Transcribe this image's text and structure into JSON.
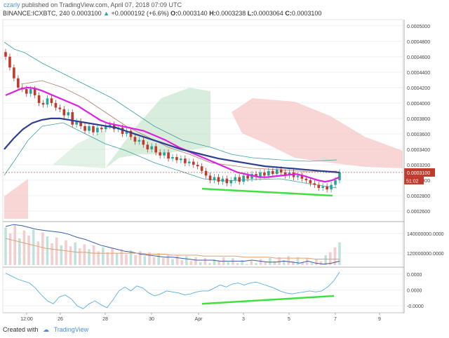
{
  "header": {
    "author": "czarly",
    "published_text": "published on TradingView.com, April 07, 2018 07:09 UTC",
    "symbol": "BINANCE:ICXBTC, 240",
    "last": "0.0003100",
    "change": "+0.0000192 (+6.6%)",
    "o_label": "O:",
    "o": "0.0003140",
    "h_label": "H:",
    "h": "0.0003238",
    "l_label": "L:",
    "l": "0.0003064",
    "c_label": "C:",
    "c": "0.0003100"
  },
  "footer": {
    "created_with": "Created with",
    "brand": "TradingView"
  },
  "colors": {
    "ma_fast": "#e020e0",
    "ma_slow": "#2c3e90",
    "trendline": "#40e040",
    "cloud_bull": "#b9dfc0",
    "cloud_bear": "#f7c5c5",
    "candle_up": "#26a69a",
    "candle_down": "#c0392b"
  },
  "chart_data": [
    {
      "type": "candlestick",
      "title": "BINANCE:ICXBTC, 240",
      "x_ticks": [
        "12:00",
        "26",
        "28",
        "30",
        "Apr",
        "3",
        "5",
        "7",
        "9"
      ],
      "y_ticks": [
        "0.0002600",
        "0.0002800",
        "0.0003000",
        "0.0003200",
        "0.0003400",
        "0.0003600",
        "0.0003800",
        "0.0004000",
        "0.0004200",
        "0.0004400",
        "0.0004600",
        "0.0004800",
        "0.0005000"
      ],
      "ylim": [
        0.00025,
        0.000508
      ],
      "price_label": "0.0003100",
      "countdown_label": "51:02",
      "close": [
        0.00046,
        0.000446,
        0.000432,
        0.00042,
        0.000418,
        0.000412,
        0.000418,
        0.00041,
        0.0004,
        0.000398,
        0.000406,
        0.0004,
        0.000394,
        0.000392,
        0.000384,
        0.000388,
        0.000372,
        0.000376,
        0.00037,
        0.000364,
        0.00037,
        0.000362,
        0.000368,
        0.000366,
        0.00037,
        0.000372,
        0.000366,
        0.000368,
        0.00036,
        0.000364,
        0.000356,
        0.00035,
        0.000352,
        0.000346,
        0.00034,
        0.000344,
        0.000336,
        0.000332,
        0.000336,
        0.000328,
        0.00033,
        0.000326,
        0.000328,
        0.000322,
        0.000324,
        0.00032,
        0.000318,
        0.000312,
        0.000306,
        0.0003,
        0.000304,
        0.000298,
        0.000302,
        0.000296,
        0.0003,
        0.000304,
        0.000298,
        0.000306,
        0.000302,
        0.000308,
        0.000304,
        0.00031,
        0.000306,
        0.000312,
        0.000308,
        0.000314,
        0.00031,
        0.000306,
        0.00031,
        0.000304,
        0.000306,
        0.000302,
        0.0003,
        0.000296,
        0.000294,
        0.00029,
        0.000292,
        0.000288,
        0.000294,
        0.0003,
        0.00031
      ],
      "ma_fast": [
        0.00041,
        0.000414,
        0.000418,
        0.00042,
        0.000419,
        0.000416,
        0.000412,
        0.000408,
        0.000404,
        0.0004,
        0.000396,
        0.00039,
        0.000384,
        0.000378,
        0.000374,
        0.000372,
        0.00037,
        0.000368,
        0.000366,
        0.000364,
        0.00036,
        0.000356,
        0.000352,
        0.000347,
        0.000342,
        0.000338,
        0.000334,
        0.00033,
        0.000326,
        0.000322,
        0.000318,
        0.000314,
        0.00031,
        0.000308,
        0.000306,
        0.000304,
        0.000304,
        0.000305,
        0.000306,
        0.000307,
        0.000308,
        0.000306,
        0.000303,
        0.0003,
        0.000298,
        0.0003,
        0.000304
      ],
      "ma_slow": [
        0.00034,
        0.000354,
        0.000366,
        0.000374,
        0.000378,
        0.00038,
        0.00038,
        0.000378,
        0.000376,
        0.000374,
        0.000372,
        0.00037,
        0.000368,
        0.000364,
        0.00036,
        0.000356,
        0.000352,
        0.000348,
        0.000344,
        0.00034,
        0.000337,
        0.000334,
        0.000331,
        0.000328,
        0.000326,
        0.000324,
        0.000322,
        0.00032,
        0.000318,
        0.000317,
        0.000316,
        0.000315,
        0.000314,
        0.000313,
        0.000312,
        0.000311,
        0.00031
      ],
      "trendline": [
        0.000289,
        0.00028
      ]
    },
    {
      "type": "bar",
      "title": "Volume",
      "y_ticks": [
        "120000000.0000",
        "140000000.0000"
      ],
      "ylim": [
        108000000,
        152000000
      ],
      "values": [
        146,
        140,
        148,
        135,
        143,
        138,
        144,
        132,
        141,
        137,
        130,
        136,
        128,
        133,
        127,
        131,
        125,
        129,
        124,
        128,
        122,
        126,
        121,
        125,
        120,
        124,
        119,
        123,
        118,
        122,
        117,
        121,
        116,
        120,
        115,
        119,
        114,
        118,
        113,
        117,
        112,
        116,
        111,
        115,
        110,
        114,
        112,
        116,
        111,
        115,
        110,
        113,
        109,
        112,
        110,
        114,
        111,
        115,
        112,
        116,
        113,
        117,
        112,
        116,
        111,
        115,
        110,
        114,
        112,
        118,
        121,
        126,
        131
      ],
      "line1": [
        147,
        149,
        148,
        146,
        144,
        143,
        142,
        141,
        139,
        136,
        134,
        131,
        128,
        126,
        124,
        122,
        121,
        119,
        118,
        117,
        116,
        116,
        115,
        114,
        113,
        113,
        113,
        112,
        112,
        112,
        112,
        113,
        112,
        111,
        111,
        112,
        111,
        110,
        112,
        110,
        109,
        110,
        112
      ],
      "line2": [
        135,
        133,
        131,
        129,
        127,
        125,
        124,
        123,
        122,
        121,
        121,
        120,
        120,
        120,
        120,
        120,
        120,
        120,
        119,
        119,
        119,
        118,
        118,
        118,
        118,
        117,
        117,
        117,
        117,
        117,
        116,
        116,
        116,
        116,
        115,
        115,
        115,
        115,
        115,
        114,
        114,
        114,
        114
      ]
    },
    {
      "type": "line",
      "title": "Oscillator",
      "y_ticks": [
        "0.0000",
        "0.0000",
        "-0.0000"
      ],
      "ylim": [
        -1.15,
        1.15
      ],
      "values": [
        0.85,
        0.7,
        0.55,
        0.45,
        0.35,
        0.1,
        -0.25,
        -0.55,
        -0.7,
        -0.35,
        -0.25,
        -0.45,
        -0.8,
        -0.95,
        -0.7,
        -0.55,
        -0.75,
        -0.9,
        -0.5,
        -0.05,
        0.15,
        -0.05,
        0.2,
        0.1,
        -0.15,
        -0.3,
        -0.2,
        -0.05,
        -0.1,
        -0.15,
        -0.25,
        -0.2,
        -0.1,
        -0.05,
        -0.05,
        0.1,
        0.25,
        0.15,
        0.3,
        0.35,
        0.25,
        0.35,
        0.4,
        0.3,
        0.2,
        0.1,
        -0.05,
        -0.15,
        -0.2,
        -0.15,
        -0.1,
        -0.05,
        -0.1,
        -0.05,
        0.15,
        0.45,
        0.9
      ],
      "trendline": [
        -0.7,
        -0.3
      ]
    }
  ]
}
